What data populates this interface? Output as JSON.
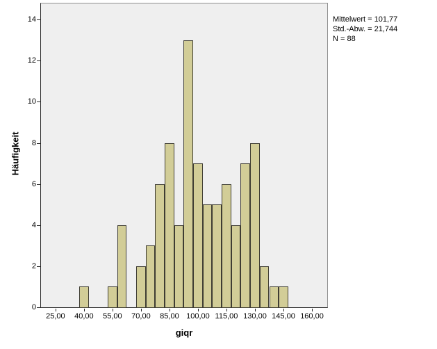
{
  "chart_data": {
    "type": "bar",
    "subtype": "histogram",
    "title": "",
    "xlabel": "giqr",
    "ylabel": "Häufigkeit",
    "bin_width": 5,
    "bin_centers": [
      40,
      55,
      60,
      70,
      75,
      80,
      85,
      90,
      95,
      100,
      105,
      110,
      115,
      120,
      125,
      130,
      135,
      140,
      145
    ],
    "counts": [
      1,
      1,
      4,
      2,
      3,
      6,
      8,
      4,
      13,
      7,
      5,
      5,
      6,
      4,
      7,
      8,
      2,
      1,
      1
    ],
    "x_ticks": [
      {
        "value": 25,
        "label": "25,00"
      },
      {
        "value": 40,
        "label": "40,00"
      },
      {
        "value": 55,
        "label": "55,00"
      },
      {
        "value": 70,
        "label": "70,00"
      },
      {
        "value": 85,
        "label": "85,00"
      },
      {
        "value": 100,
        "label": "100,00"
      },
      {
        "value": 115,
        "label": "115,00"
      },
      {
        "value": 130,
        "label": "130,00"
      },
      {
        "value": 145,
        "label": "145,00"
      },
      {
        "value": 160,
        "label": "160,00"
      }
    ],
    "y_ticks": [
      0,
      2,
      4,
      6,
      8,
      10,
      12,
      14
    ],
    "xlim": [
      17.0,
      168.4
    ],
    "ylim": [
      0,
      14.82
    ],
    "grid": false,
    "legend_position": "none",
    "colors": {
      "bar_fill": "#d2cd97",
      "bar_border": "#3f3d33",
      "plot_background": "#efefef",
      "frame": "#8f8f8f",
      "axis": "#262626"
    }
  },
  "stats_box": {
    "lines": [
      "Mittelwert = 101,77",
      "Std.-Abw. = 21,744",
      "N = 88"
    ]
  }
}
